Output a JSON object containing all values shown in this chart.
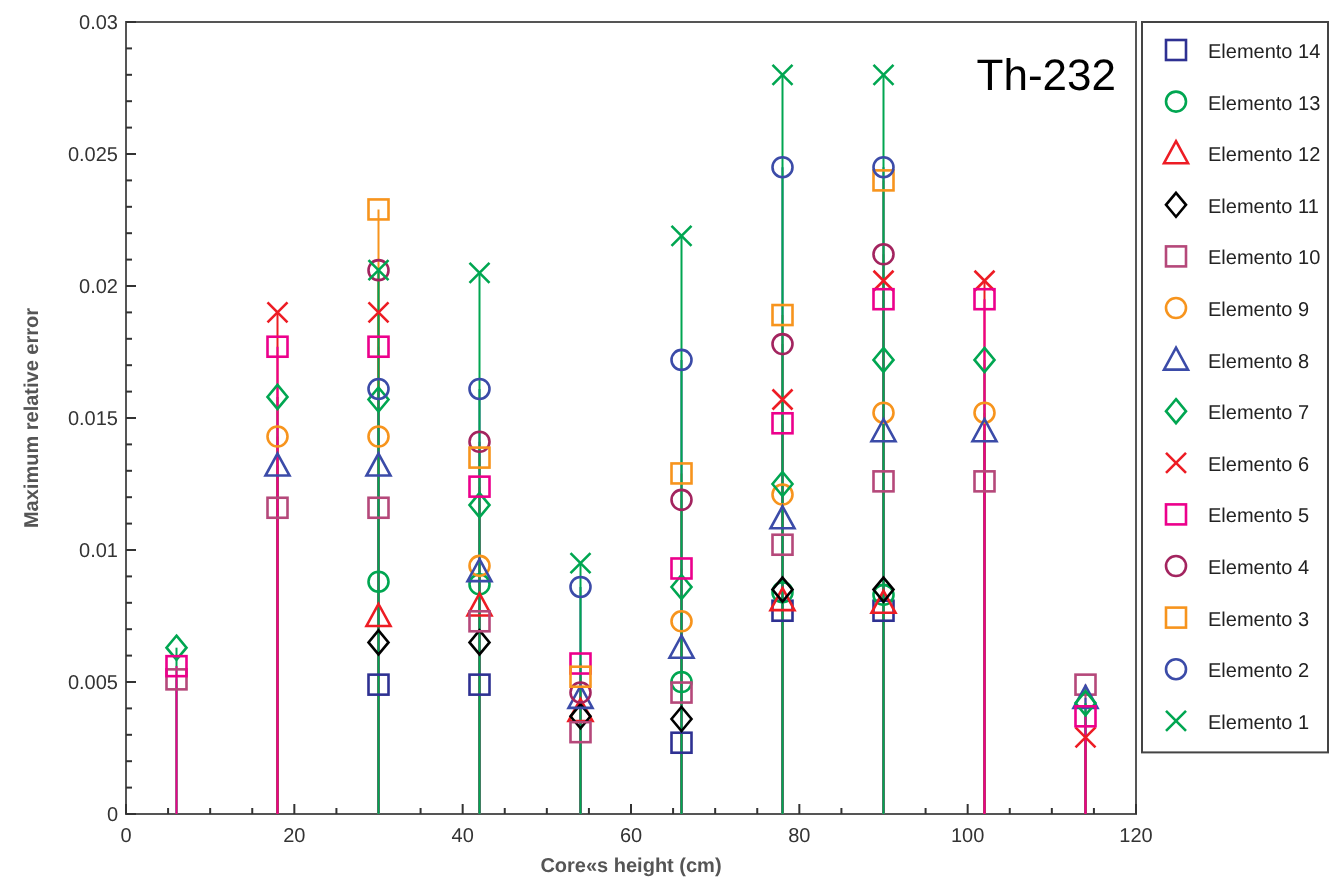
{
  "chart_data": {
    "type": "lollipop",
    "title": "Th-232",
    "xlabel": "Core«s height  (cm)",
    "ylabel": "Maximum relative error",
    "xlim": [
      0,
      120
    ],
    "ylim": [
      0,
      0.03
    ],
    "xticks": [
      0,
      {
        "value": 5,
        "label": null
      },
      {
        "value": 10,
        "label": null
      },
      {
        "value": 15,
        "label": null
      },
      20,
      {
        "value": 25,
        "label": null
      },
      {
        "value": 30,
        "label": null
      },
      {
        "value": 35,
        "label": null
      },
      40,
      {
        "value": 45,
        "label": null
      },
      {
        "value": 50,
        "label": null
      },
      {
        "value": 55,
        "label": null
      },
      60,
      {
        "value": 65,
        "label": null
      },
      {
        "value": 70,
        "label": null
      },
      {
        "value": 75,
        "label": null
      },
      80,
      {
        "value": 85,
        "label": null
      },
      {
        "value": 90,
        "label": null
      },
      {
        "value": 95,
        "label": null
      },
      100,
      {
        "value": 105,
        "label": null
      },
      {
        "value": 110,
        "label": null
      },
      {
        "value": 115,
        "label": null
      },
      120
    ],
    "yticks": [
      0,
      {
        "value": 0.001,
        "label": null
      },
      {
        "value": 0.002,
        "label": null
      },
      {
        "value": 0.003,
        "label": null
      },
      {
        "value": 0.004,
        "label": null
      },
      0.005,
      {
        "value": 0.006,
        "label": null
      },
      {
        "value": 0.007,
        "label": null
      },
      {
        "value": 0.008,
        "label": null
      },
      {
        "value": 0.009,
        "label": null
      },
      0.01,
      {
        "value": 0.011,
        "label": null
      },
      {
        "value": 0.012,
        "label": null
      },
      {
        "value": 0.013,
        "label": null
      },
      {
        "value": 0.014,
        "label": null
      },
      0.015,
      {
        "value": 0.016,
        "label": null
      },
      {
        "value": 0.017,
        "label": null
      },
      {
        "value": 0.018,
        "label": null
      },
      {
        "value": 0.019,
        "label": null
      },
      0.02,
      {
        "value": 0.021,
        "label": null
      },
      {
        "value": 0.022,
        "label": null
      },
      {
        "value": 0.023,
        "label": null
      },
      {
        "value": 0.024,
        "label": null
      },
      0.025,
      {
        "value": 0.026,
        "label": null
      },
      {
        "value": 0.027,
        "label": null
      },
      {
        "value": 0.028,
        "label": null
      },
      {
        "value": 0.029,
        "label": null
      },
      0.03
    ],
    "legend": "right",
    "series": [
      {
        "name": "Elemento 14",
        "color": "#2e3192",
        "marker": "square",
        "x": [
          30,
          42,
          66,
          78,
          90
        ],
        "values": [
          0.0049,
          0.0049,
          0.0027,
          0.0077,
          0.0077
        ]
      },
      {
        "name": "Elemento 13",
        "color": "#00a651",
        "marker": "circle",
        "x": [
          30,
          42,
          66,
          78,
          90
        ],
        "values": [
          0.0088,
          0.0087,
          0.005,
          0.0084,
          0.0083
        ]
      },
      {
        "name": "Elemento 12",
        "color": "#ed1c24",
        "marker": "triangle",
        "x": [
          30,
          42,
          54,
          78,
          90
        ],
        "values": [
          0.0075,
          0.0079,
          0.0039,
          0.0081,
          0.008
        ]
      },
      {
        "name": "Elemento 11",
        "color": "#000000",
        "marker": "diamond",
        "x": [
          30,
          42,
          54,
          66,
          78,
          90
        ],
        "values": [
          0.0065,
          0.0065,
          0.0037,
          0.0036,
          0.0085,
          0.0085
        ]
      },
      {
        "name": "Elemento 10",
        "color": "#b5487a",
        "marker": "square",
        "x": [
          6,
          18,
          30,
          42,
          54,
          66,
          78,
          90,
          102,
          114
        ],
        "values": [
          0.0051,
          0.0116,
          0.0116,
          0.0073,
          0.0031,
          0.0046,
          0.0102,
          0.0126,
          0.0126,
          0.0049
        ]
      },
      {
        "name": "Elemento 9",
        "color": "#f7941d",
        "marker": "circle",
        "x": [
          18,
          30,
          42,
          66,
          78,
          90,
          102
        ],
        "values": [
          0.0143,
          0.0143,
          0.0094,
          0.0073,
          0.0121,
          0.0152,
          0.0152
        ]
      },
      {
        "name": "Elemento 8",
        "color": "#3b4ba8",
        "marker": "triangle",
        "x": [
          18,
          30,
          42,
          54,
          66,
          78,
          90,
          102,
          114
        ],
        "values": [
          0.0132,
          0.0132,
          0.0092,
          0.0044,
          0.0063,
          0.0112,
          0.0145,
          0.0145,
          0.0044
        ]
      },
      {
        "name": "Elemento 7",
        "color": "#00a651",
        "marker": "diamond",
        "x": [
          6,
          18,
          30,
          42,
          66,
          78,
          90,
          102,
          114
        ],
        "values": [
          0.0063,
          0.0158,
          0.0157,
          0.0117,
          0.0086,
          0.0125,
          0.0172,
          0.0172,
          0.0042
        ]
      },
      {
        "name": "Elemento 6",
        "color": "#ed1c24",
        "marker": "cross",
        "x": [
          18,
          30,
          78,
          90,
          102,
          114
        ],
        "values": [
          0.019,
          0.019,
          0.0157,
          0.0202,
          0.0202,
          0.0029
        ]
      },
      {
        "name": "Elemento 5",
        "color": "#ec008c",
        "marker": "square",
        "x": [
          6,
          18,
          30,
          42,
          54,
          66,
          78,
          90,
          102,
          114
        ],
        "values": [
          0.0056,
          0.0177,
          0.0177,
          0.0124,
          0.0057,
          0.0093,
          0.0148,
          0.0195,
          0.0195,
          0.0037
        ]
      },
      {
        "name": "Elemento 4",
        "color": "#a3245f",
        "marker": "circle",
        "x": [
          30,
          42,
          54,
          66,
          78,
          90
        ],
        "values": [
          0.0206,
          0.0141,
          0.0046,
          0.0119,
          0.0178,
          0.0212
        ]
      },
      {
        "name": "Elemento 3",
        "color": "#f7941d",
        "marker": "square",
        "x": [
          30,
          42,
          54,
          66,
          78,
          90
        ],
        "values": [
          0.0229,
          0.0135,
          0.0052,
          0.0129,
          0.0189,
          0.024
        ]
      },
      {
        "name": "Elemento 2",
        "color": "#3b4ba8",
        "marker": "circle",
        "x": [
          30,
          42,
          54,
          66,
          78,
          90
        ],
        "values": [
          0.0161,
          0.0161,
          0.0086,
          0.0172,
          0.0245,
          0.0245
        ]
      },
      {
        "name": "Elemento 1",
        "color": "#00a651",
        "marker": "cross",
        "x": [
          30,
          42,
          54,
          66,
          78,
          90
        ],
        "values": [
          0.0206,
          0.0205,
          0.0095,
          0.0219,
          0.028,
          0.028
        ]
      }
    ]
  }
}
